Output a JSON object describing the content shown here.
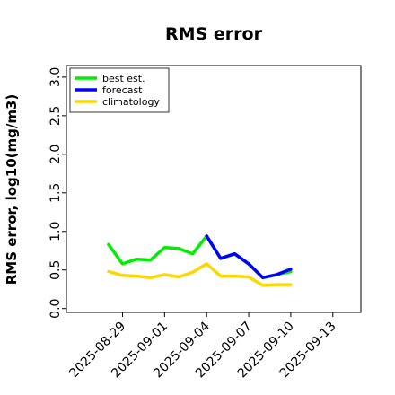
{
  "chart_data": {
    "type": "line",
    "title": "RMS error",
    "xlabel": "",
    "ylabel": "RMS error, log10(mg/m3)",
    "ylim": [
      -0.05,
      3.15
    ],
    "yticks": [
      "0.0",
      "0.5",
      "1.0",
      "1.5",
      "2.0",
      "2.5",
      "3.0"
    ],
    "xlim": [
      "2025-08-25",
      "2025-09-15"
    ],
    "xticks": [
      {
        "label": "2025-08-29",
        "color": "#000000"
      },
      {
        "label": "2025-09-01",
        "color": "#000000"
      },
      {
        "label": "2025-09-04",
        "color": "#228b22"
      },
      {
        "label": "2025-09-07",
        "color": "#000000"
      },
      {
        "label": "2025-09-10",
        "color": "#000000"
      },
      {
        "label": "2025-09-13",
        "color": "#000000"
      }
    ],
    "grid": false,
    "legend": "top-left",
    "series": [
      {
        "name": "best est.",
        "color": "#00ee00",
        "x": [
          "2025-08-28",
          "2025-08-29",
          "2025-08-30",
          "2025-08-31",
          "2025-09-01",
          "2025-09-02",
          "2025-09-03",
          "2025-09-04",
          "2025-09-05",
          "2025-09-06",
          "2025-09-07",
          "2025-09-08",
          "2025-09-09",
          "2025-09-10"
        ],
        "y": [
          0.83,
          0.58,
          0.64,
          0.63,
          0.79,
          0.78,
          0.71,
          0.94,
          0.65,
          0.71,
          0.58,
          0.4,
          0.44,
          0.48
        ]
      },
      {
        "name": "forecast",
        "color": "#0000ff",
        "x": [
          "2025-09-04",
          "2025-09-05",
          "2025-09-06",
          "2025-09-07",
          "2025-09-08",
          "2025-09-09",
          "2025-09-10"
        ],
        "y": [
          0.94,
          0.65,
          0.71,
          0.58,
          0.4,
          0.44,
          0.51
        ]
      },
      {
        "name": "climatology",
        "color": "#ffd700",
        "x": [
          "2025-08-28",
          "2025-08-29",
          "2025-08-30",
          "2025-08-31",
          "2025-09-01",
          "2025-09-02",
          "2025-09-03",
          "2025-09-04",
          "2025-09-05",
          "2025-09-06",
          "2025-09-07",
          "2025-09-08",
          "2025-09-09",
          "2025-09-10"
        ],
        "y": [
          0.48,
          0.43,
          0.42,
          0.4,
          0.44,
          0.41,
          0.47,
          0.58,
          0.42,
          0.42,
          0.41,
          0.3,
          0.31,
          0.31
        ]
      }
    ]
  }
}
